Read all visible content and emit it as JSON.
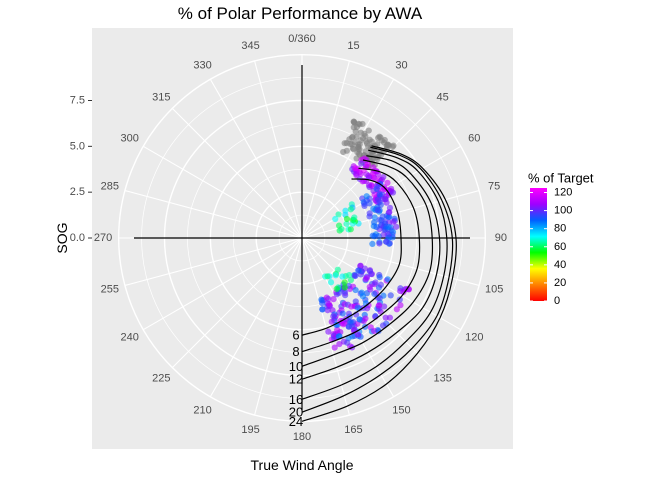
{
  "chart_data": {
    "type": "scatter",
    "coordinate_system": "polar",
    "title": "% of Polar Performance by AWA",
    "xlabel": "True Wind Angle",
    "ylabel": "SOG",
    "angle_ticks": [
      "0/360",
      "15",
      "30",
      "45",
      "60",
      "75",
      "90",
      "105",
      "120",
      "135",
      "150",
      "165",
      "180",
      "195",
      "210",
      "225",
      "240",
      "255",
      "270",
      "285",
      "300",
      "315",
      "330",
      "345"
    ],
    "radius_ticks": [
      0.0,
      2.5,
      5.0,
      7.5
    ],
    "radius_tick_labels": [
      "0.0",
      "2.5",
      "5.0",
      "7.5"
    ],
    "rlim": [
      0,
      9
    ],
    "grid": true,
    "polar_curves": {
      "labels": [
        "6",
        "8",
        "10",
        "12",
        "16",
        "20",
        "24"
      ],
      "series": [
        {
          "name": "6",
          "points": [
            [
              40,
              4.2
            ],
            [
              50,
              4.9
            ],
            [
              60,
              5.3
            ],
            [
              75,
              5.4
            ],
            [
              90,
              5.4
            ],
            [
              105,
              5.5
            ],
            [
              120,
              5.3
            ],
            [
              135,
              5.1
            ],
            [
              150,
              5.0
            ],
            [
              165,
              5.1
            ],
            [
              180,
              5.3
            ]
          ]
        },
        {
          "name": "8",
          "points": [
            [
              39,
              4.9
            ],
            [
              50,
              5.6
            ],
            [
              60,
              6.0
            ],
            [
              75,
              6.3
            ],
            [
              90,
              6.4
            ],
            [
              105,
              6.5
            ],
            [
              120,
              6.3
            ],
            [
              135,
              6.0
            ],
            [
              150,
              5.9
            ],
            [
              165,
              5.9
            ],
            [
              180,
              6.2
            ]
          ]
        },
        {
          "name": "10",
          "points": [
            [
              38,
              5.4
            ],
            [
              50,
              6.1
            ],
            [
              60,
              6.6
            ],
            [
              75,
              7.0
            ],
            [
              90,
              7.1
            ],
            [
              105,
              7.2
            ],
            [
              120,
              7.0
            ],
            [
              135,
              6.7
            ],
            [
              150,
              6.6
            ],
            [
              165,
              6.6
            ],
            [
              180,
              7.0
            ]
          ]
        },
        {
          "name": "12",
          "points": [
            [
              38,
              5.7
            ],
            [
              50,
              6.5
            ],
            [
              60,
              6.9
            ],
            [
              75,
              7.3
            ],
            [
              90,
              7.5
            ],
            [
              105,
              7.6
            ],
            [
              120,
              7.6
            ],
            [
              135,
              7.3
            ],
            [
              150,
              7.2
            ],
            [
              165,
              7.3
            ],
            [
              180,
              7.7
            ]
          ]
        },
        {
          "name": "16",
          "points": [
            [
              37,
              6.0
            ],
            [
              50,
              6.8
            ],
            [
              60,
              7.3
            ],
            [
              75,
              7.7
            ],
            [
              90,
              7.9
            ],
            [
              105,
              8.0
            ],
            [
              120,
              8.1
            ],
            [
              135,
              8.0
            ],
            [
              150,
              8.1
            ],
            [
              165,
              8.3
            ],
            [
              180,
              8.8
            ]
          ]
        },
        {
          "name": "20",
          "points": [
            [
              37,
              6.2
            ],
            [
              50,
              7.0
            ],
            [
              60,
              7.5
            ],
            [
              75,
              7.9
            ],
            [
              90,
              8.2
            ],
            [
              105,
              8.3
            ],
            [
              120,
              8.5
            ],
            [
              135,
              8.5
            ],
            [
              150,
              8.6
            ],
            [
              165,
              8.9
            ],
            [
              180,
              9.5
            ]
          ]
        },
        {
          "name": "24",
          "points": [
            [
              37,
              6.3
            ],
            [
              50,
              7.1
            ],
            [
              60,
              7.6
            ],
            [
              75,
              8.1
            ],
            [
              90,
              8.4
            ],
            [
              105,
              8.5
            ],
            [
              120,
              8.7
            ],
            [
              135,
              8.9
            ],
            [
              150,
              9.2
            ],
            [
              165,
              9.5
            ],
            [
              180,
              10.0
            ]
          ]
        }
      ]
    },
    "legend": {
      "title": "% of Target",
      "placement": "right",
      "labels": [
        "120",
        "100",
        "80",
        "60",
        "40",
        "20",
        "0"
      ],
      "scale_values": [
        120,
        100,
        80,
        60,
        40,
        20,
        0
      ],
      "range": [
        0,
        125
      ],
      "gradient_colors": [
        "#ff0000",
        "#ff8000",
        "#ffff00",
        "#00ff00",
        "#00ffff",
        "#0060ff",
        "#9f00ff",
        "#ff00ff"
      ]
    },
    "missing_color": "#808080",
    "scatter_clusters": [
      {
        "description": "upwind boats with no target (grey)",
        "pct": null,
        "angle_range": [
          24,
          45
        ],
        "sog_range": [
          5.2,
          7.1
        ],
        "count": 90
      },
      {
        "description": "upwind purple",
        "pct": [
          100,
          120
        ],
        "angle_range": [
          35,
          65
        ],
        "sog_range": [
          4.5,
          5.6
        ],
        "count": 70
      },
      {
        "description": "upwind reach blue",
        "pct": [
          85,
          105
        ],
        "angle_range": [
          55,
          95
        ],
        "sog_range": [
          3.8,
          5.2
        ],
        "count": 80
      },
      {
        "description": "tight reach green-cyan",
        "pct": [
          55,
          80
        ],
        "angle_range": [
          55,
          80
        ],
        "sog_range": [
          2.0,
          3.3
        ],
        "count": 20
      },
      {
        "description": "broad reach blue-purple",
        "pct": [
          85,
          115
        ],
        "angle_range": [
          115,
          165
        ],
        "sog_range": [
          3.4,
          6.6
        ],
        "count": 180
      },
      {
        "description": "broad reach green",
        "pct": [
          50,
          75
        ],
        "angle_range": [
          120,
          150
        ],
        "sog_range": [
          2.3,
          3.8
        ],
        "count": 15
      }
    ]
  }
}
